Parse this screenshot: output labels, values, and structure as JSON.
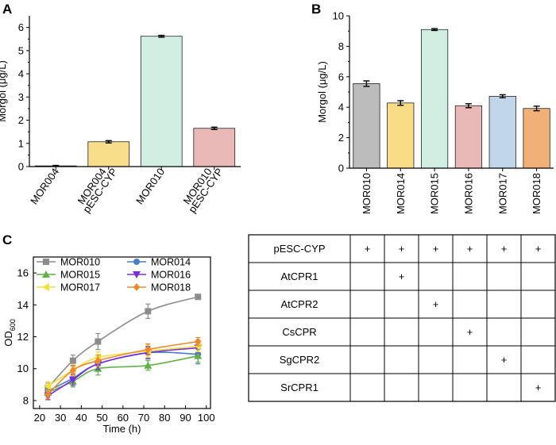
{
  "chart_data": [
    {
      "panel": "A",
      "type": "bar",
      "ylabel": "Morgol (μg/L)",
      "ylim": [
        0,
        6.5
      ],
      "yticks": [
        0,
        1,
        2,
        3,
        4,
        5,
        6
      ],
      "categories": [
        {
          "lines": [
            "MOR004"
          ]
        },
        {
          "lines": [
            "MOR004",
            "pESC-CYP"
          ]
        },
        {
          "lines": [
            "MOR010"
          ]
        },
        {
          "lines": [
            "MOR010",
            "pESC-CYP"
          ]
        }
      ],
      "values": [
        0.03,
        1.07,
        5.62,
        1.65
      ],
      "errors": [
        0.02,
        0.05,
        0.04,
        0.05
      ],
      "colors": [
        "#b8b8b8",
        "#f8de8a",
        "#d2ede2",
        "#e8b9b7"
      ]
    },
    {
      "panel": "B",
      "type": "bar",
      "ylabel": "Morgol (μg/L)",
      "ylim": [
        0,
        10
      ],
      "yticks": [
        0,
        2,
        4,
        6,
        8,
        10
      ],
      "categories": [
        "MOR010",
        "MOR014",
        "MOR015",
        "MOR016",
        "MOR017",
        "MOR018"
      ],
      "values": [
        5.55,
        4.28,
        9.1,
        4.1,
        4.72,
        3.92
      ],
      "errors": [
        0.18,
        0.15,
        0.06,
        0.13,
        0.1,
        0.15
      ],
      "colors": [
        "#bcbcbc",
        "#f8dc86",
        "#d2ede2",
        "#e8b9b7",
        "#c2d6ea",
        "#f1b078"
      ]
    },
    {
      "panel": "C",
      "type": "line",
      "xlabel": "Time (h)",
      "ylabel": "OD",
      "ylabel_sub": "600",
      "xlim": [
        17,
        102
      ],
      "ylim": [
        7.5,
        17
      ],
      "xticks": [
        20,
        30,
        40,
        50,
        60,
        70,
        80,
        90,
        100
      ],
      "yticks": [
        8,
        10,
        12,
        14,
        16
      ],
      "x": [
        24,
        36,
        48,
        72,
        96
      ],
      "series": [
        {
          "name": "MOR010",
          "color": "#8c8c8c",
          "marker": "square",
          "values": [
            8.8,
            10.5,
            11.7,
            13.6,
            14.5
          ],
          "errors": [
            0.3,
            0.35,
            0.5,
            0.45,
            0.05
          ]
        },
        {
          "name": "MOR014",
          "color": "#4a7cc9",
          "marker": "circle",
          "values": [
            8.6,
            9.4,
            10.3,
            11.0,
            10.9
          ],
          "errors": [
            0.3,
            0.35,
            0.4,
            0.4,
            0.6
          ]
        },
        {
          "name": "MOR015",
          "color": "#62b04a",
          "marker": "triangle-up",
          "values": [
            8.5,
            9.2,
            10.0,
            10.2,
            10.8
          ],
          "errors": [
            0.3,
            0.35,
            0.4,
            0.3,
            0.4
          ]
        },
        {
          "name": "MOR016",
          "color": "#7a2ce0",
          "marker": "triangle-down",
          "values": [
            8.3,
            9.3,
            10.3,
            11.0,
            11.3
          ],
          "errors": [
            0.25,
            0.35,
            0.35,
            0.35,
            0.3
          ]
        },
        {
          "name": "MOR017",
          "color": "#f0e040",
          "marker": "triangle-left",
          "values": [
            8.9,
            9.9,
            10.7,
            11.1,
            11.4
          ],
          "errors": [
            0.3,
            0.35,
            0.35,
            0.4,
            0.35
          ]
        },
        {
          "name": "MOR018",
          "color": "#f0872a",
          "marker": "diamond",
          "values": [
            8.4,
            9.9,
            10.5,
            11.2,
            11.7
          ],
          "errors": [
            0.3,
            0.3,
            0.35,
            0.35,
            0.25
          ]
        }
      ]
    }
  ],
  "panels": {
    "a": "A",
    "b": "B",
    "c": "C"
  },
  "table": {
    "rows": [
      {
        "label": "pESC-CYP",
        "marks": [
          "+",
          "+",
          "+",
          "+",
          "+",
          "+"
        ]
      },
      {
        "label": "AtCPR1",
        "marks": [
          "",
          "+",
          "",
          "",
          "",
          ""
        ]
      },
      {
        "label": "AtCPR2",
        "marks": [
          "",
          "",
          "+",
          "",
          "",
          ""
        ]
      },
      {
        "label": "CsCPR",
        "marks": [
          "",
          "",
          "",
          "+",
          "",
          ""
        ]
      },
      {
        "label": "SgCPR2",
        "marks": [
          "",
          "",
          "",
          "",
          "+",
          ""
        ]
      },
      {
        "label": "SrCPR1",
        "marks": [
          "",
          "",
          "",
          "",
          "",
          "+"
        ]
      }
    ]
  }
}
